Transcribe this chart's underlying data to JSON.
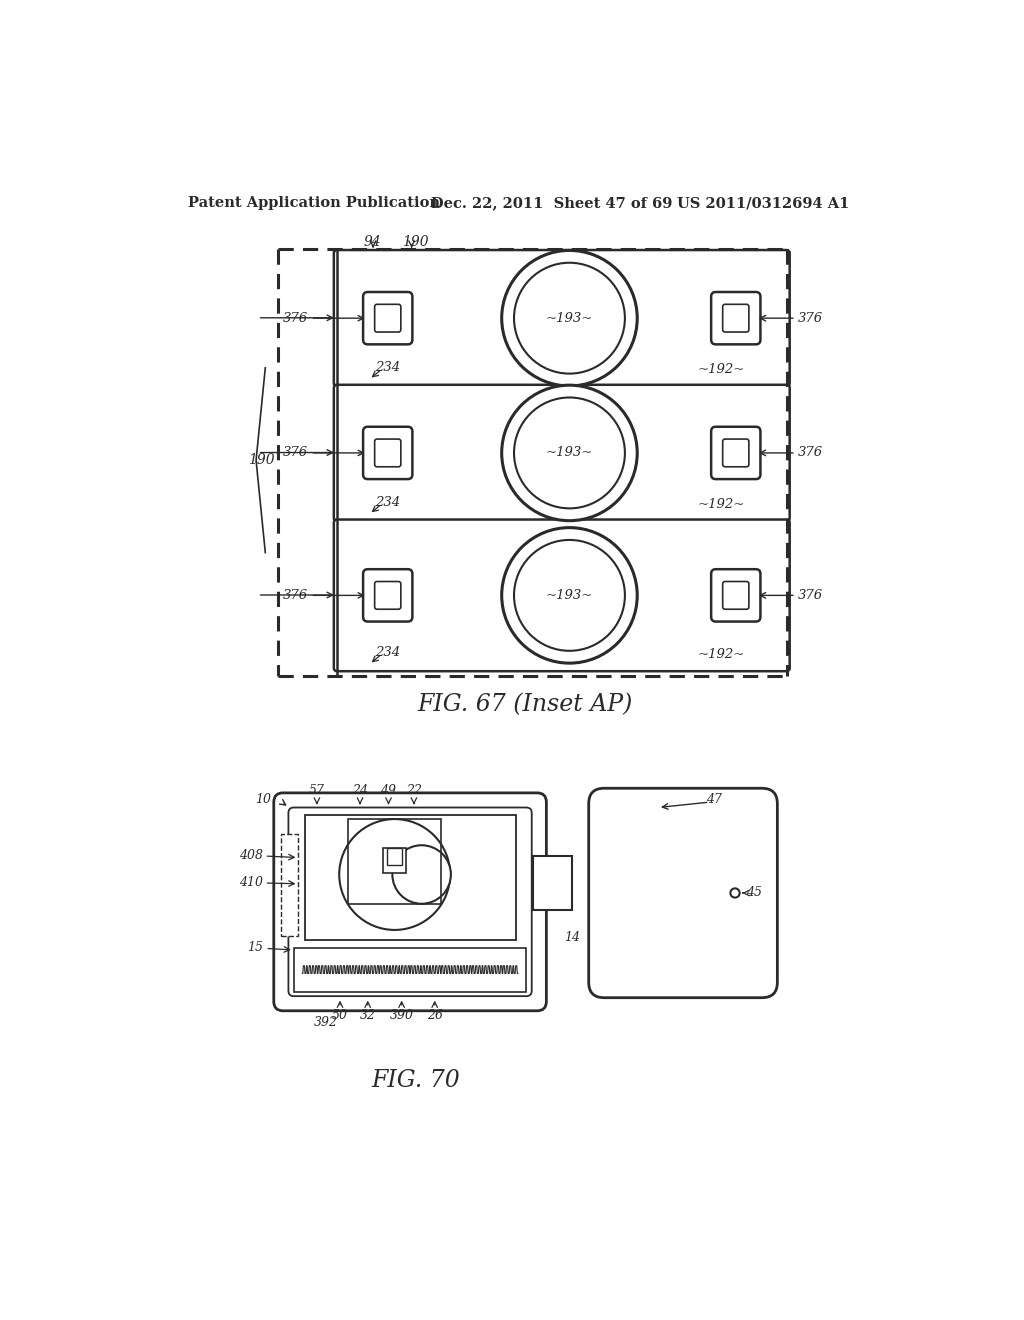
{
  "bg_color": "#ffffff",
  "header_left": "Patent Application Publication",
  "header_mid": "Dec. 22, 2011  Sheet 47 of 69",
  "header_right": "US 2011/0312694 A1",
  "fig67_caption": "FIG. 67 (Inset AP)",
  "fig70_caption": "FIG. 70",
  "line_color": "#2a2a2a"
}
